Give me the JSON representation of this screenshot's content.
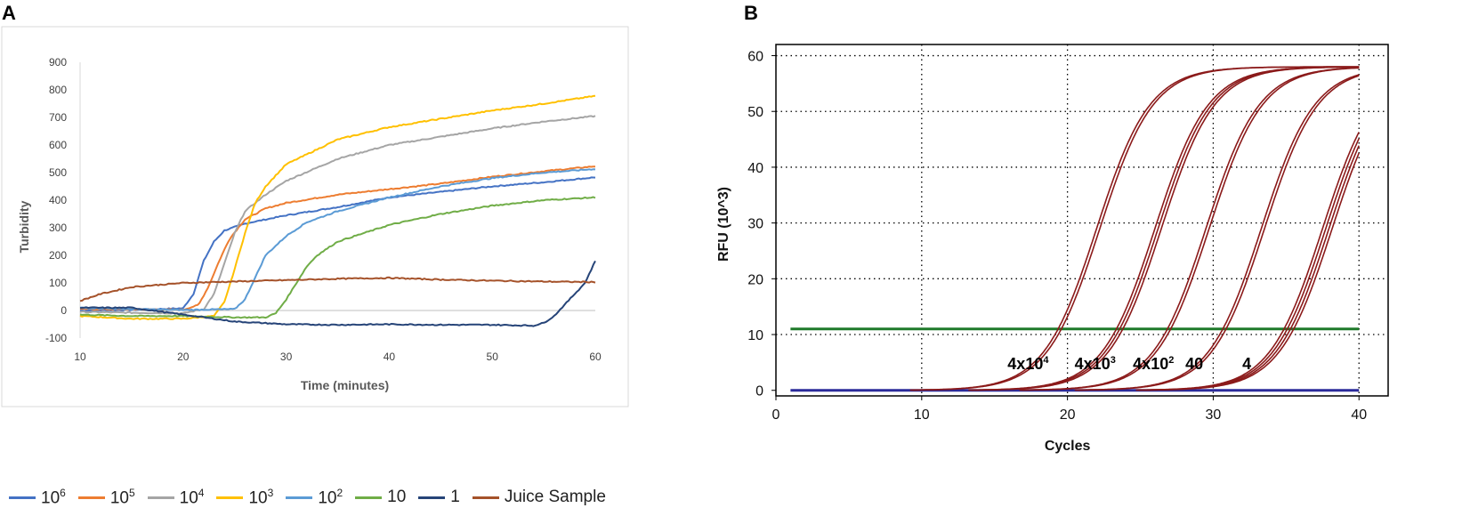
{
  "panels": {
    "a_label": "A",
    "b_label": "B"
  },
  "chart_data": [
    {
      "type": "line",
      "panel": "A",
      "title": "",
      "xlabel": "Time (minutes)",
      "ylabel": "Turbidity",
      "xlim": [
        10,
        60
      ],
      "ylim": [
        -100,
        900
      ],
      "xticks": [
        10,
        20,
        30,
        40,
        50,
        60
      ],
      "yticks": [
        -100,
        0,
        100,
        200,
        300,
        400,
        500,
        600,
        700,
        800,
        900
      ],
      "grid": false,
      "legend_position": "bottom",
      "series": [
        {
          "name": "10^6",
          "base": "10",
          "exp": "6",
          "color": "#4472C4",
          "x": [
            10,
            15,
            20,
            21,
            22,
            23,
            24,
            26,
            28,
            30,
            35,
            40,
            45,
            50,
            55,
            60
          ],
          "y": [
            0,
            2,
            8,
            60,
            180,
            250,
            290,
            315,
            330,
            345,
            375,
            410,
            430,
            450,
            465,
            483
          ]
        },
        {
          "name": "10^5",
          "base": "10",
          "exp": "5",
          "color": "#ED7D31",
          "x": [
            10,
            15,
            20,
            21.5,
            22.5,
            23.5,
            24.5,
            26,
            28,
            30,
            35,
            40,
            45,
            50,
            55,
            60
          ],
          "y": [
            5,
            4,
            3,
            20,
            90,
            180,
            260,
            330,
            370,
            390,
            420,
            440,
            460,
            485,
            505,
            523
          ]
        },
        {
          "name": "10^4",
          "base": "10",
          "exp": "4",
          "color": "#A5A5A5",
          "x": [
            10,
            15,
            20,
            22,
            23,
            24,
            25,
            26,
            28,
            30,
            35,
            40,
            45,
            50,
            55,
            60
          ],
          "y": [
            -5,
            -8,
            -10,
            5,
            60,
            170,
            280,
            360,
            420,
            470,
            550,
            600,
            630,
            660,
            685,
            705
          ]
        },
        {
          "name": "10^3",
          "base": "10",
          "exp": "3",
          "color": "#FFC000",
          "x": [
            10,
            15,
            20,
            23,
            24,
            25,
            26,
            27,
            28,
            30,
            35,
            40,
            45,
            50,
            55,
            60
          ],
          "y": [
            -20,
            -30,
            -30,
            -20,
            30,
            150,
            280,
            390,
            450,
            530,
            620,
            665,
            695,
            725,
            750,
            778
          ]
        },
        {
          "name": "10^2",
          "base": "10",
          "exp": "2",
          "color": "#5B9BD5",
          "x": [
            10,
            15,
            20,
            25,
            26,
            27,
            28,
            30,
            32,
            35,
            40,
            45,
            50,
            55,
            60
          ],
          "y": [
            10,
            5,
            2,
            5,
            40,
            120,
            200,
            270,
            320,
            360,
            410,
            450,
            480,
            500,
            513
          ]
        },
        {
          "name": "10",
          "base": "10",
          "exp": "",
          "color": "#70AD47",
          "x": [
            10,
            15,
            20,
            25,
            28,
            29,
            30,
            31,
            32,
            33,
            35,
            40,
            45,
            50,
            55,
            60
          ],
          "y": [
            -15,
            -20,
            -20,
            -25,
            -25,
            -10,
            40,
            100,
            160,
            200,
            250,
            310,
            350,
            380,
            400,
            410
          ]
        },
        {
          "name": "1",
          "base": "1",
          "exp": "",
          "color": "#264478",
          "x": [
            10,
            15,
            20,
            25,
            30,
            35,
            40,
            45,
            50,
            54,
            55,
            56,
            57,
            58,
            59,
            60
          ],
          "y": [
            10,
            10,
            -15,
            -40,
            -50,
            -52,
            -50,
            -52,
            -52,
            -55,
            -45,
            -20,
            20,
            60,
            100,
            180
          ]
        },
        {
          "name": "Juice Sample",
          "base": "Juice Sample",
          "exp": "",
          "color": "#A5522A",
          "x": [
            10,
            12,
            15,
            20,
            25,
            30,
            35,
            40,
            45,
            50,
            55,
            60
          ],
          "y": [
            35,
            60,
            85,
            100,
            105,
            110,
            115,
            118,
            112,
            108,
            105,
            103
          ]
        }
      ]
    },
    {
      "type": "line",
      "panel": "B",
      "title": "",
      "xlabel": "Cycles",
      "ylabel": "RFU (10^3)",
      "xlim": [
        0,
        42
      ],
      "ylim": [
        -1,
        62
      ],
      "xticks": [
        0,
        10,
        20,
        30,
        40
      ],
      "yticks": [
        0,
        10,
        20,
        30,
        40,
        50,
        60
      ],
      "grid": true,
      "threshold": 11,
      "baseline": 0,
      "series": [
        {
          "name": "4x10^4",
          "midpoint": 22.0,
          "steepness": 0.55,
          "plateau": 58,
          "replicates": 2
        },
        {
          "name": "4x10^3",
          "midpoint": 26.0,
          "steepness": 0.55,
          "plateau": 58,
          "replicates": 3
        },
        {
          "name": "4x10^2",
          "midpoint": 29.5,
          "steepness": 0.55,
          "plateau": 58,
          "replicates": 2
        },
        {
          "name": "40",
          "midpoint": 33.3,
          "steepness": 0.55,
          "plateau": 58,
          "replicates": 2
        },
        {
          "name": "4",
          "midpoint": 37.5,
          "steepness": 0.55,
          "plateau": 58,
          "replicates": 4
        }
      ],
      "annotations": [
        {
          "base": "4x10",
          "exp": "4",
          "x": 17.3
        },
        {
          "base": "4x10",
          "exp": "3",
          "x": 21.9
        },
        {
          "base": "4x10",
          "exp": "2",
          "x": 25.9
        },
        {
          "base": "40",
          "exp": "",
          "x": 28.7
        },
        {
          "base": "4",
          "exp": "",
          "x": 32.3
        }
      ]
    }
  ]
}
